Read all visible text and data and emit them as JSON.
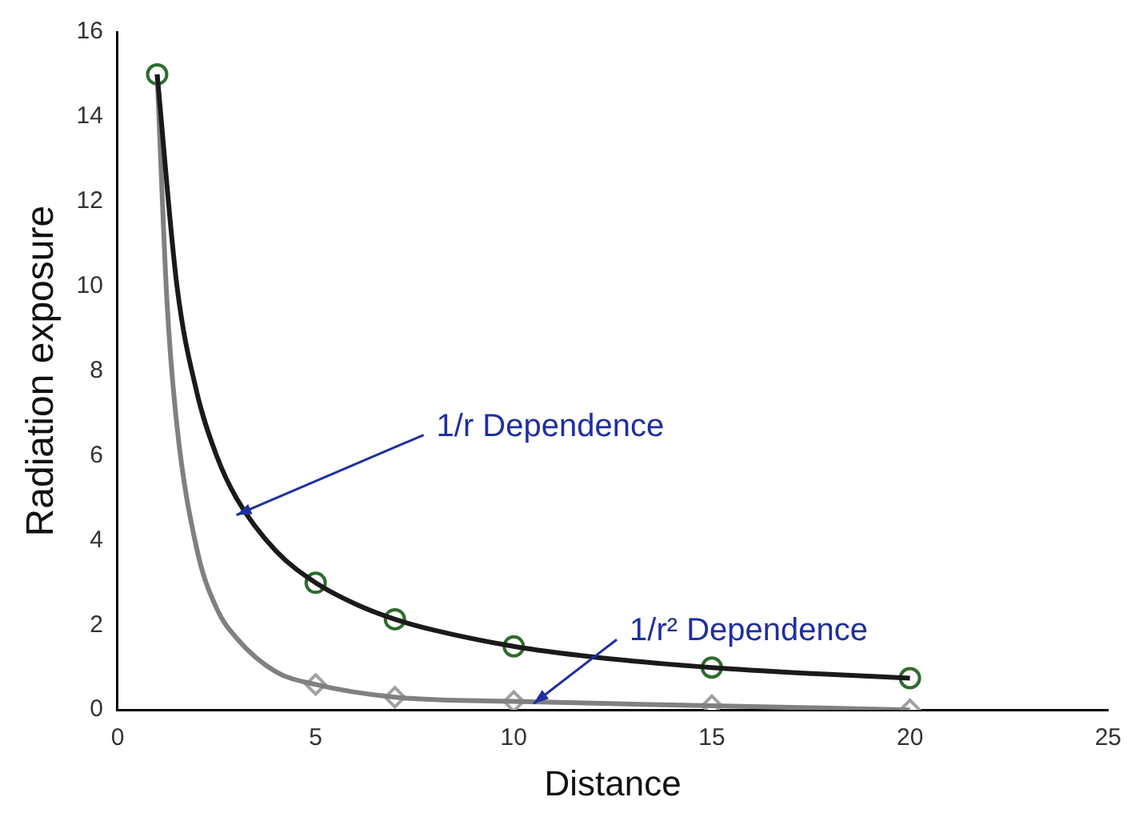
{
  "chart_data": {
    "type": "line",
    "xlabel": "Distance",
    "ylabel": "Radiation exposure",
    "xlim": [
      0,
      25
    ],
    "xticks": [
      0,
      5,
      10,
      15,
      20,
      25
    ],
    "ylim": [
      0,
      16
    ],
    "yticks": [
      0,
      2,
      4,
      6,
      8,
      10,
      12,
      14,
      16
    ],
    "grid": false,
    "legend": false,
    "series": [
      {
        "color": "#1a1a1a",
        "marker": "none",
        "x": [
          1,
          1.5,
          2,
          2.5,
          3,
          4,
          5,
          6,
          7,
          8,
          10,
          12,
          15,
          17.5,
          20
        ],
        "values": [
          15,
          10,
          7.5,
          6,
          5,
          3.75,
          3,
          2.5,
          2.14,
          1.88,
          1.5,
          1.25,
          1,
          0.86,
          0.75
        ]
      },
      {
        "color": "#808080",
        "marker": "none",
        "x": [
          1,
          1.25,
          1.5,
          2,
          2.5,
          3,
          4,
          5,
          7,
          10,
          15,
          20
        ],
        "values": [
          15,
          9.6,
          6.7,
          3.8,
          2.4,
          1.7,
          0.9,
          0.6,
          0.3,
          0.2,
          0.1,
          0
        ]
      },
      {
        "type": "scatter",
        "color": "#2e6b2e",
        "marker": "circle",
        "x": [
          1,
          5,
          7,
          10,
          15,
          20
        ],
        "values": [
          15,
          3,
          2.14,
          1.5,
          1,
          0.75
        ]
      },
      {
        "type": "scatter",
        "color": "#a0a0a0",
        "marker": "diamond",
        "x": [
          5,
          7,
          10,
          15,
          20
        ],
        "values": [
          0.6,
          0.3,
          0.2,
          0.1,
          0
        ]
      }
    ],
    "annotations": [
      {
        "text": "1/r Dependence",
        "x": 3,
        "y": 4.6
      },
      {
        "text": "1/r² Dependence",
        "x": 10.5,
        "y": 0.15
      }
    ]
  }
}
